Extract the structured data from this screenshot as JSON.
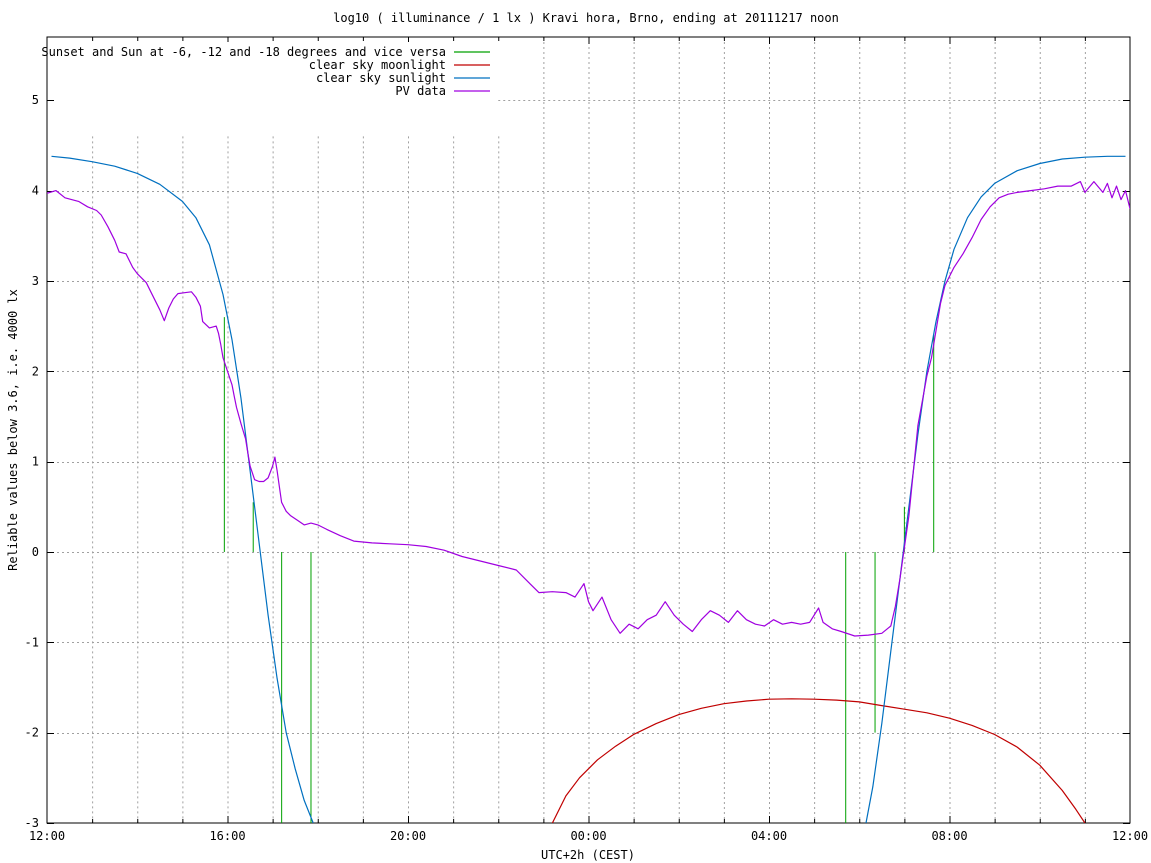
{
  "chart_data": {
    "type": "line",
    "title": "log10 ( illuminance / 1 lx ) Kravi hora, Brno, ending at 20111217 noon",
    "xlabel": "UTC+2h (CEST)",
    "ylabel": "Reliable values below 3.6, i.e. 4000 lx",
    "x_unit": "hours since 12:00",
    "xlim": [
      0,
      24
    ],
    "ylim": [
      -3,
      5.7
    ],
    "x_ticks": [
      {
        "value": 0,
        "label": "12:00"
      },
      {
        "value": 4,
        "label": "16:00"
      },
      {
        "value": 8,
        "label": "20:00"
      },
      {
        "value": 12,
        "label": "00:00"
      },
      {
        "value": 16,
        "label": "04:00"
      },
      {
        "value": 20,
        "label": "08:00"
      },
      {
        "value": 24,
        "label": "12:00"
      }
    ],
    "y_ticks": [
      {
        "value": -3,
        "label": "-3"
      },
      {
        "value": -2,
        "label": "-2"
      },
      {
        "value": -1,
        "label": "-1"
      },
      {
        "value": 0,
        "label": "0"
      },
      {
        "value": 1,
        "label": "1"
      },
      {
        "value": 2,
        "label": "2"
      },
      {
        "value": 3,
        "label": "3"
      },
      {
        "value": 4,
        "label": "4"
      },
      {
        "value": 5,
        "label": "5"
      }
    ],
    "grid": true,
    "legend_position": "top-left",
    "series": [
      {
        "name": "Sunset and Sun at -6, -12 and -18 degrees and vice versa",
        "color": "#00a000",
        "kind": "impulses",
        "points": [
          {
            "x": 3.93,
            "y0": 0,
            "y1": 2.6
          },
          {
            "x": 4.57,
            "y0": 0,
            "y1": 0.55
          },
          {
            "x": 5.2,
            "y0": 0,
            "y1": -3
          },
          {
            "x": 5.85,
            "y0": 0,
            "y1": -3
          },
          {
            "x": 17.7,
            "y0": 0,
            "y1": -3
          },
          {
            "x": 18.35,
            "y0": 0,
            "y1": -2.0
          },
          {
            "x": 19.0,
            "y0": 0,
            "y1": 0.5
          },
          {
            "x": 19.65,
            "y0": 0,
            "y1": 2.4
          }
        ]
      },
      {
        "name": "clear sky moonlight",
        "color": "#c00000",
        "kind": "line",
        "points": [
          [
            11.2,
            -3.0
          ],
          [
            11.5,
            -2.7
          ],
          [
            11.8,
            -2.5
          ],
          [
            12.2,
            -2.3
          ],
          [
            12.6,
            -2.15
          ],
          [
            13.0,
            -2.02
          ],
          [
            13.5,
            -1.9
          ],
          [
            14.0,
            -1.8
          ],
          [
            14.5,
            -1.73
          ],
          [
            15.0,
            -1.68
          ],
          [
            15.5,
            -1.65
          ],
          [
            16.0,
            -1.63
          ],
          [
            16.5,
            -1.625
          ],
          [
            17.0,
            -1.63
          ],
          [
            17.5,
            -1.64
          ],
          [
            18.0,
            -1.66
          ],
          [
            18.5,
            -1.7
          ],
          [
            19.0,
            -1.74
          ],
          [
            19.5,
            -1.78
          ],
          [
            20.0,
            -1.84
          ],
          [
            20.5,
            -1.92
          ],
          [
            21.0,
            -2.02
          ],
          [
            21.5,
            -2.16
          ],
          [
            22.0,
            -2.36
          ],
          [
            22.5,
            -2.64
          ],
          [
            22.8,
            -2.85
          ],
          [
            23.0,
            -3.0
          ]
        ]
      },
      {
        "name": "clear sky sunlight",
        "color": "#0070c0",
        "kind": "line",
        "points": [
          [
            0.1,
            4.38
          ],
          [
            0.5,
            4.36
          ],
          [
            1.0,
            4.32
          ],
          [
            1.5,
            4.27
          ],
          [
            2.0,
            4.19
          ],
          [
            2.5,
            4.07
          ],
          [
            3.0,
            3.88
          ],
          [
            3.3,
            3.7
          ],
          [
            3.6,
            3.4
          ],
          [
            3.9,
            2.85
          ],
          [
            4.1,
            2.35
          ],
          [
            4.3,
            1.7
          ],
          [
            4.5,
            0.9
          ],
          [
            4.7,
            0.1
          ],
          [
            4.9,
            -0.7
          ],
          [
            5.1,
            -1.4
          ],
          [
            5.3,
            -2.0
          ],
          [
            5.5,
            -2.4
          ],
          [
            5.7,
            -2.75
          ],
          [
            5.9,
            -3.0
          ],
          [
            18.15,
            -3.0
          ],
          [
            18.3,
            -2.6
          ],
          [
            18.5,
            -1.9
          ],
          [
            18.7,
            -1.1
          ],
          [
            18.9,
            -0.3
          ],
          [
            19.1,
            0.5
          ],
          [
            19.3,
            1.3
          ],
          [
            19.5,
            2.0
          ],
          [
            19.7,
            2.55
          ],
          [
            19.9,
            3.0
          ],
          [
            20.1,
            3.35
          ],
          [
            20.4,
            3.7
          ],
          [
            20.7,
            3.93
          ],
          [
            21.0,
            4.08
          ],
          [
            21.5,
            4.22
          ],
          [
            22.0,
            4.3
          ],
          [
            22.5,
            4.35
          ],
          [
            23.0,
            4.37
          ],
          [
            23.5,
            4.38
          ],
          [
            23.9,
            4.38
          ]
        ]
      },
      {
        "name": "PV data",
        "color": "#a000e0",
        "kind": "line",
        "points": [
          [
            0.0,
            3.97
          ],
          [
            0.2,
            4.0
          ],
          [
            0.4,
            3.92
          ],
          [
            0.7,
            3.88
          ],
          [
            0.9,
            3.82
          ],
          [
            1.1,
            3.78
          ],
          [
            1.2,
            3.73
          ],
          [
            1.35,
            3.6
          ],
          [
            1.5,
            3.45
          ],
          [
            1.6,
            3.32
          ],
          [
            1.75,
            3.3
          ],
          [
            1.9,
            3.15
          ],
          [
            2.0,
            3.08
          ],
          [
            2.1,
            3.03
          ],
          [
            2.2,
            2.98
          ],
          [
            2.3,
            2.88
          ],
          [
            2.4,
            2.78
          ],
          [
            2.5,
            2.68
          ],
          [
            2.6,
            2.56
          ],
          [
            2.7,
            2.7
          ],
          [
            2.8,
            2.8
          ],
          [
            2.9,
            2.86
          ],
          [
            3.05,
            2.87
          ],
          [
            3.2,
            2.88
          ],
          [
            3.3,
            2.82
          ],
          [
            3.4,
            2.72
          ],
          [
            3.45,
            2.55
          ],
          [
            3.6,
            2.48
          ],
          [
            3.75,
            2.5
          ],
          [
            3.8,
            2.42
          ],
          [
            3.85,
            2.3
          ],
          [
            3.9,
            2.15
          ],
          [
            4.0,
            2.0
          ],
          [
            4.1,
            1.85
          ],
          [
            4.15,
            1.72
          ],
          [
            4.2,
            1.6
          ],
          [
            4.3,
            1.42
          ],
          [
            4.4,
            1.25
          ],
          [
            4.45,
            1.1
          ],
          [
            4.5,
            0.95
          ],
          [
            4.6,
            0.8
          ],
          [
            4.7,
            0.78
          ],
          [
            4.8,
            0.78
          ],
          [
            4.9,
            0.82
          ],
          [
            5.0,
            0.95
          ],
          [
            5.05,
            1.05
          ],
          [
            5.1,
            0.9
          ],
          [
            5.15,
            0.72
          ],
          [
            5.2,
            0.55
          ],
          [
            5.3,
            0.45
          ],
          [
            5.4,
            0.4
          ],
          [
            5.55,
            0.35
          ],
          [
            5.7,
            0.3
          ],
          [
            5.85,
            0.32
          ],
          [
            6.0,
            0.3
          ],
          [
            6.2,
            0.25
          ],
          [
            6.5,
            0.18
          ],
          [
            6.8,
            0.12
          ],
          [
            7.2,
            0.1
          ],
          [
            7.6,
            0.09
          ],
          [
            8.0,
            0.08
          ],
          [
            8.4,
            0.06
          ],
          [
            8.8,
            0.02
          ],
          [
            9.2,
            -0.05
          ],
          [
            9.6,
            -0.1
          ],
          [
            10.0,
            -0.15
          ],
          [
            10.4,
            -0.2
          ],
          [
            10.7,
            -0.35
          ],
          [
            10.9,
            -0.45
          ],
          [
            11.2,
            -0.44
          ],
          [
            11.5,
            -0.45
          ],
          [
            11.7,
            -0.5
          ],
          [
            11.9,
            -0.35
          ],
          [
            12.0,
            -0.55
          ],
          [
            12.1,
            -0.65
          ],
          [
            12.3,
            -0.5
          ],
          [
            12.5,
            -0.75
          ],
          [
            12.7,
            -0.9
          ],
          [
            12.9,
            -0.8
          ],
          [
            13.1,
            -0.85
          ],
          [
            13.3,
            -0.75
          ],
          [
            13.5,
            -0.7
          ],
          [
            13.7,
            -0.55
          ],
          [
            13.9,
            -0.7
          ],
          [
            14.1,
            -0.8
          ],
          [
            14.3,
            -0.88
          ],
          [
            14.5,
            -0.75
          ],
          [
            14.7,
            -0.65
          ],
          [
            14.9,
            -0.7
          ],
          [
            15.1,
            -0.78
          ],
          [
            15.3,
            -0.65
          ],
          [
            15.5,
            -0.75
          ],
          [
            15.7,
            -0.8
          ],
          [
            15.9,
            -0.82
          ],
          [
            16.1,
            -0.75
          ],
          [
            16.3,
            -0.8
          ],
          [
            16.5,
            -0.78
          ],
          [
            16.7,
            -0.8
          ],
          [
            16.9,
            -0.78
          ],
          [
            17.1,
            -0.62
          ],
          [
            17.2,
            -0.78
          ],
          [
            17.4,
            -0.85
          ],
          [
            17.6,
            -0.88
          ],
          [
            17.9,
            -0.93
          ],
          [
            18.2,
            -0.92
          ],
          [
            18.5,
            -0.9
          ],
          [
            18.7,
            -0.82
          ],
          [
            18.8,
            -0.6
          ],
          [
            18.9,
            -0.3
          ],
          [
            19.0,
            0.05
          ],
          [
            19.1,
            0.4
          ],
          [
            19.2,
            0.9
          ],
          [
            19.3,
            1.4
          ],
          [
            19.5,
            1.95
          ],
          [
            19.6,
            2.15
          ],
          [
            19.7,
            2.45
          ],
          [
            19.8,
            2.75
          ],
          [
            19.9,
            2.95
          ],
          [
            20.1,
            3.15
          ],
          [
            20.3,
            3.3
          ],
          [
            20.5,
            3.48
          ],
          [
            20.7,
            3.68
          ],
          [
            20.9,
            3.82
          ],
          [
            21.1,
            3.92
          ],
          [
            21.3,
            3.96
          ],
          [
            21.5,
            3.98
          ],
          [
            21.8,
            4.0
          ],
          [
            22.1,
            4.02
          ],
          [
            22.4,
            4.05
          ],
          [
            22.7,
            4.05
          ],
          [
            22.9,
            4.1
          ],
          [
            23.0,
            3.98
          ],
          [
            23.2,
            4.1
          ],
          [
            23.4,
            3.98
          ],
          [
            23.5,
            4.08
          ],
          [
            23.6,
            3.92
          ],
          [
            23.7,
            4.05
          ],
          [
            23.8,
            3.9
          ],
          [
            23.9,
            4.0
          ],
          [
            24.0,
            3.8
          ]
        ]
      }
    ]
  }
}
